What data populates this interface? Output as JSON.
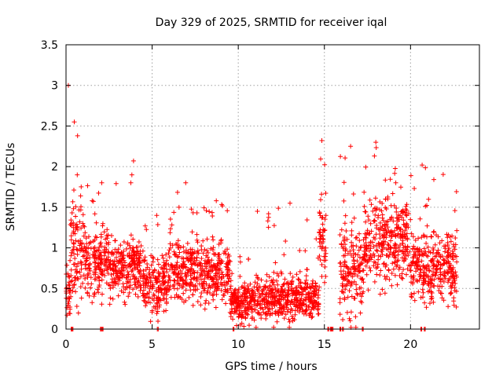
{
  "chart_data": {
    "type": "scatter",
    "title": "Day 329 of 2025, SRMTID for receiver iqal",
    "xlabel": "GPS time / hours",
    "ylabel": "SRMTID / TECUs",
    "xlim": [
      0,
      24
    ],
    "ylim": [
      0,
      3.5
    ],
    "xticks": [
      0,
      5,
      10,
      15,
      20
    ],
    "xtick_labels": [
      "0",
      "5",
      "10",
      "15",
      "20"
    ],
    "yticks": [
      0,
      0.5,
      1,
      1.5,
      2,
      2.5,
      3,
      3.5
    ],
    "ytick_labels": [
      "0",
      "0.5",
      "1",
      "1.5",
      "2",
      "2.5",
      "3",
      "3.5"
    ],
    "grid": true,
    "legend": "none",
    "marker": "+",
    "colors": {
      "series": "#ff0000",
      "grid": "#a0a0a0",
      "axis": "#000000"
    },
    "series": [
      {
        "name": "SRMTID",
        "segments": [
          {
            "t_start": 0.0,
            "t_end": 0.25,
            "level": 0.45,
            "spread": 0.35,
            "max": 3.0
          },
          {
            "t_start": 0.25,
            "t_end": 1.1,
            "level": 1.0,
            "spread": 0.55,
            "max": 2.55
          },
          {
            "t_start": 1.1,
            "t_end": 2.5,
            "level": 0.85,
            "spread": 0.35,
            "max": 1.8
          },
          {
            "t_start": 2.5,
            "t_end": 4.5,
            "level": 0.75,
            "spread": 0.3,
            "max": 2.07
          },
          {
            "t_start": 4.5,
            "t_end": 6.0,
            "level": 0.55,
            "spread": 0.3,
            "max": 1.4
          },
          {
            "t_start": 6.0,
            "t_end": 7.5,
            "level": 0.75,
            "spread": 0.3,
            "max": 1.8
          },
          {
            "t_start": 7.5,
            "t_end": 9.5,
            "level": 0.7,
            "spread": 0.3,
            "max": 1.58
          },
          {
            "t_start": 9.5,
            "t_end": 12.0,
            "level": 0.35,
            "spread": 0.22,
            "max": 1.45
          },
          {
            "t_start": 12.0,
            "t_end": 14.7,
            "level": 0.38,
            "spread": 0.22,
            "max": 1.55
          },
          {
            "t_start": 14.7,
            "t_end": 15.1,
            "level": 1.1,
            "spread": 0.4,
            "max": 2.32
          },
          {
            "t_start": 15.9,
            "t_end": 17.3,
            "level": 0.7,
            "spread": 0.45,
            "max": 2.25
          },
          {
            "t_start": 17.3,
            "t_end": 20.0,
            "level": 1.1,
            "spread": 0.45,
            "max": 2.3
          },
          {
            "t_start": 20.0,
            "t_end": 22.7,
            "level": 0.75,
            "spread": 0.35,
            "max": 2.02
          }
        ],
        "zero_points": [
          0.3,
          0.35,
          2.0,
          2.1,
          5.3,
          9.7,
          15.2,
          15.35,
          15.45,
          15.9,
          16.05,
          17.2,
          20.6,
          20.8
        ]
      }
    ]
  }
}
